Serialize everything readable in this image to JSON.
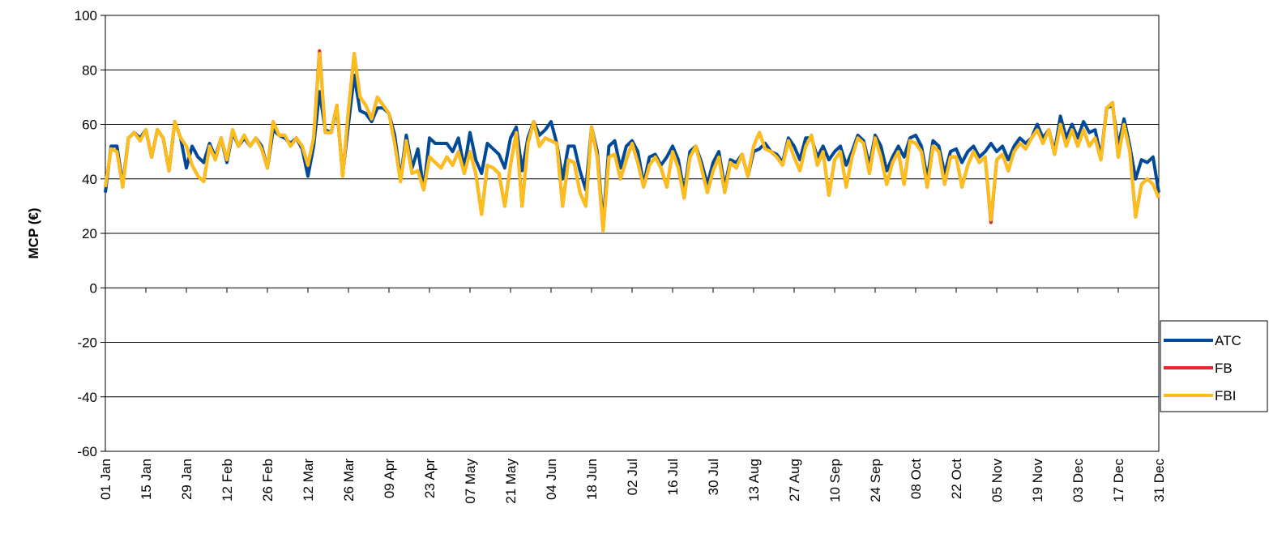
{
  "chart_data": {
    "type": "line",
    "y_label": "MCP (€)",
    "categories": [
      "01 Jan",
      null,
      null,
      null,
      null,
      null,
      null,
      "15 Jan",
      null,
      null,
      null,
      null,
      null,
      null,
      "29 Jan",
      null,
      null,
      null,
      null,
      null,
      null,
      "12 Feb",
      null,
      null,
      null,
      null,
      null,
      null,
      "26 Feb",
      null,
      null,
      null,
      null,
      null,
      null,
      "12 Mar",
      null,
      null,
      null,
      null,
      null,
      null,
      "26 Mar",
      null,
      null,
      null,
      null,
      null,
      null,
      "09 Apr",
      null,
      null,
      null,
      null,
      null,
      null,
      "23 Apr",
      null,
      null,
      null,
      null,
      null,
      null,
      "07 May",
      null,
      null,
      null,
      null,
      null,
      null,
      "21 May",
      null,
      null,
      null,
      null,
      null,
      null,
      "04 Jun",
      null,
      null,
      null,
      null,
      null,
      null,
      "18 Jun",
      null,
      null,
      null,
      null,
      null,
      null,
      "02 Jul",
      null,
      null,
      null,
      null,
      null,
      null,
      "16 Jul",
      null,
      null,
      null,
      null,
      null,
      null,
      "30 Jul",
      null,
      null,
      null,
      null,
      null,
      null,
      "13 Aug",
      null,
      null,
      null,
      null,
      null,
      null,
      "27 Aug",
      null,
      null,
      null,
      null,
      null,
      null,
      "10 Sep",
      null,
      null,
      null,
      null,
      null,
      null,
      "24 Sep",
      null,
      null,
      null,
      null,
      null,
      null,
      "08 Oct",
      null,
      null,
      null,
      null,
      null,
      null,
      "22 Oct",
      null,
      null,
      null,
      null,
      null,
      null,
      "05 Nov",
      null,
      null,
      null,
      null,
      null,
      null,
      "19 Nov",
      null,
      null,
      null,
      null,
      null,
      null,
      "03 Dec",
      null,
      null,
      null,
      null,
      null,
      null,
      "17 Dec",
      null,
      null,
      null,
      null,
      null,
      null,
      "31 Dec"
    ],
    "series": [
      {
        "name": "ATC",
        "color": "#004a97",
        "values": [
          35,
          52,
          52,
          38,
          55,
          57,
          55,
          58,
          48,
          58,
          55,
          43,
          61,
          55,
          44,
          52,
          48,
          46,
          53,
          48,
          55,
          46,
          57,
          52,
          55,
          52,
          55,
          52,
          44,
          58,
          56,
          55,
          53,
          55,
          51,
          41,
          52,
          72,
          58,
          57,
          66,
          42,
          60,
          78,
          65,
          64,
          61,
          66,
          66,
          64,
          56,
          40,
          56,
          44,
          51,
          36,
          55,
          53,
          53,
          53,
          50,
          55,
          44,
          57,
          47,
          42,
          53,
          51,
          49,
          44,
          55,
          59,
          43,
          55,
          61,
          56,
          58,
          61,
          53,
          40,
          52,
          52,
          43,
          36,
          59,
          50,
          23,
          52,
          54,
          44,
          52,
          54,
          50,
          38,
          48,
          49,
          45,
          48,
          52,
          47,
          35,
          50,
          52,
          46,
          38,
          46,
          50,
          37,
          47,
          46,
          49,
          41,
          50,
          51,
          53,
          50,
          49,
          46,
          55,
          52,
          47,
          55,
          55,
          48,
          52,
          47,
          50,
          52,
          45,
          50,
          56,
          54,
          45,
          56,
          52,
          43,
          48,
          52,
          48,
          55,
          56,
          52,
          40,
          54,
          52,
          42,
          50,
          51,
          46,
          50,
          52,
          48,
          50,
          53,
          50,
          52,
          47,
          52,
          55,
          53,
          55,
          60,
          55,
          58,
          50,
          63,
          55,
          60,
          55,
          61,
          57,
          58,
          48,
          66,
          67,
          52,
          62,
          52,
          40,
          47,
          46,
          48,
          35
        ]
      },
      {
        "name": "FB",
        "color": "#e8242c",
        "values": [
          37,
          51,
          50,
          37,
          55,
          57,
          54,
          58,
          48,
          58,
          55,
          43,
          61,
          55,
          52,
          45,
          41,
          39,
          52,
          47,
          55,
          47,
          58,
          52,
          56,
          52,
          55,
          51,
          44,
          61,
          56,
          56,
          52,
          55,
          52,
          45,
          55,
          87,
          57,
          57,
          67,
          41,
          65,
          86,
          70,
          67,
          62,
          70,
          67,
          64,
          53,
          39,
          54,
          42,
          43,
          36,
          48,
          46,
          44,
          48,
          45,
          50,
          42,
          50,
          42,
          27,
          45,
          44,
          42,
          30,
          45,
          57,
          30,
          53,
          61,
          52,
          55,
          54,
          53,
          30,
          47,
          46,
          35,
          30,
          59,
          48,
          21,
          48,
          49,
          40,
          47,
          53,
          46,
          37,
          45,
          48,
          44,
          37,
          50,
          44,
          33,
          48,
          52,
          44,
          35,
          43,
          48,
          35,
          46,
          44,
          49,
          41,
          52,
          57,
          51,
          50,
          48,
          45,
          54,
          48,
          43,
          52,
          56,
          45,
          50,
          34,
          47,
          50,
          37,
          48,
          55,
          53,
          42,
          55,
          48,
          38,
          46,
          50,
          38,
          54,
          53,
          50,
          37,
          52,
          50,
          38,
          48,
          48,
          37,
          45,
          50,
          46,
          48,
          24,
          47,
          49,
          43,
          50,
          53,
          51,
          55,
          58,
          53,
          58,
          49,
          60,
          52,
          58,
          52,
          58,
          52,
          55,
          47,
          66,
          68,
          48,
          60,
          50,
          26,
          38,
          40,
          38,
          33
        ]
      },
      {
        "name": "FBI",
        "color": "#fbbe1a",
        "values": [
          37,
          51,
          50,
          37,
          55,
          57,
          54,
          58,
          48,
          58,
          55,
          43,
          61,
          55,
          52,
          45,
          41,
          39,
          52,
          47,
          55,
          47,
          58,
          52,
          56,
          52,
          55,
          51,
          44,
          61,
          56,
          56,
          52,
          55,
          52,
          45,
          55,
          86,
          57,
          57,
          67,
          41,
          65,
          86,
          70,
          67,
          62,
          70,
          67,
          64,
          53,
          39,
          54,
          42,
          43,
          36,
          48,
          46,
          44,
          48,
          45,
          50,
          42,
          50,
          42,
          27,
          45,
          44,
          42,
          30,
          45,
          57,
          30,
          53,
          61,
          52,
          55,
          54,
          53,
          30,
          47,
          46,
          35,
          30,
          59,
          48,
          21,
          48,
          49,
          40,
          47,
          53,
          46,
          37,
          45,
          48,
          44,
          37,
          50,
          44,
          33,
          48,
          52,
          44,
          35,
          43,
          48,
          35,
          46,
          44,
          49,
          41,
          52,
          57,
          51,
          50,
          48,
          45,
          54,
          48,
          43,
          52,
          56,
          45,
          50,
          34,
          47,
          50,
          37,
          48,
          55,
          53,
          42,
          55,
          48,
          38,
          46,
          50,
          38,
          54,
          53,
          50,
          37,
          52,
          50,
          38,
          48,
          48,
          37,
          45,
          50,
          46,
          48,
          25,
          47,
          49,
          43,
          50,
          53,
          51,
          55,
          58,
          53,
          58,
          49,
          60,
          52,
          58,
          52,
          58,
          52,
          55,
          47,
          66,
          68,
          48,
          60,
          50,
          26,
          38,
          40,
          38,
          33
        ]
      }
    ],
    "ylim": [
      -60,
      100
    ],
    "yticks": [
      -60,
      -40,
      -20,
      0,
      20,
      40,
      60,
      80,
      100
    ],
    "grid": true,
    "legend": "right"
  }
}
